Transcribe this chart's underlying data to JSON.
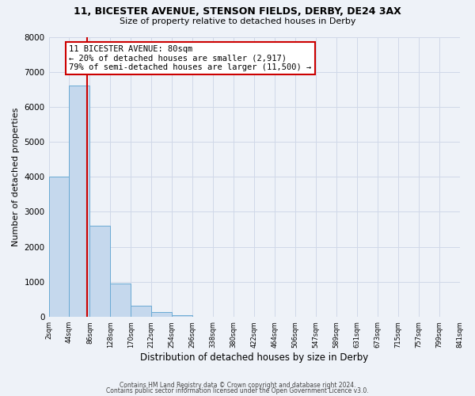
{
  "title": "11, BICESTER AVENUE, STENSON FIELDS, DERBY, DE24 3AX",
  "subtitle": "Size of property relative to detached houses in Derby",
  "xlabel": "Distribution of detached houses by size in Derby",
  "ylabel": "Number of detached properties",
  "bin_edges": [
    2,
    44,
    86,
    128,
    170,
    212,
    254,
    296,
    338,
    380,
    422,
    464,
    506,
    547,
    589,
    631,
    673,
    715,
    757,
    799,
    841
  ],
  "bar_heights": [
    4000,
    6600,
    2600,
    960,
    320,
    130,
    55,
    0,
    0,
    0,
    0,
    0,
    0,
    0,
    0,
    0,
    0,
    0,
    0,
    0
  ],
  "bar_color": "#c5d8ed",
  "bar_edge_color": "#6aaad4",
  "property_line_x": 80,
  "property_line_color": "#cc0000",
  "annotation_text": "11 BICESTER AVENUE: 80sqm\n← 20% of detached houses are smaller (2,917)\n79% of semi-detached houses are larger (11,500) →",
  "annotation_box_color": "#ffffff",
  "annotation_box_edge_color": "#cc0000",
  "ylim": [
    0,
    8000
  ],
  "tick_labels": [
    "2sqm",
    "44sqm",
    "86sqm",
    "128sqm",
    "170sqm",
    "212sqm",
    "254sqm",
    "296sqm",
    "338sqm",
    "380sqm",
    "422sqm",
    "464sqm",
    "506sqm",
    "547sqm",
    "589sqm",
    "631sqm",
    "673sqm",
    "715sqm",
    "757sqm",
    "799sqm",
    "841sqm"
  ],
  "footer_line1": "Contains HM Land Registry data © Crown copyright and database right 2024.",
  "footer_line2": "Contains public sector information licensed under the Open Government Licence v3.0.",
  "background_color": "#eef2f8",
  "grid_color": "#d0d8e8",
  "yticks": [
    0,
    1000,
    2000,
    3000,
    4000,
    5000,
    6000,
    7000,
    8000
  ]
}
